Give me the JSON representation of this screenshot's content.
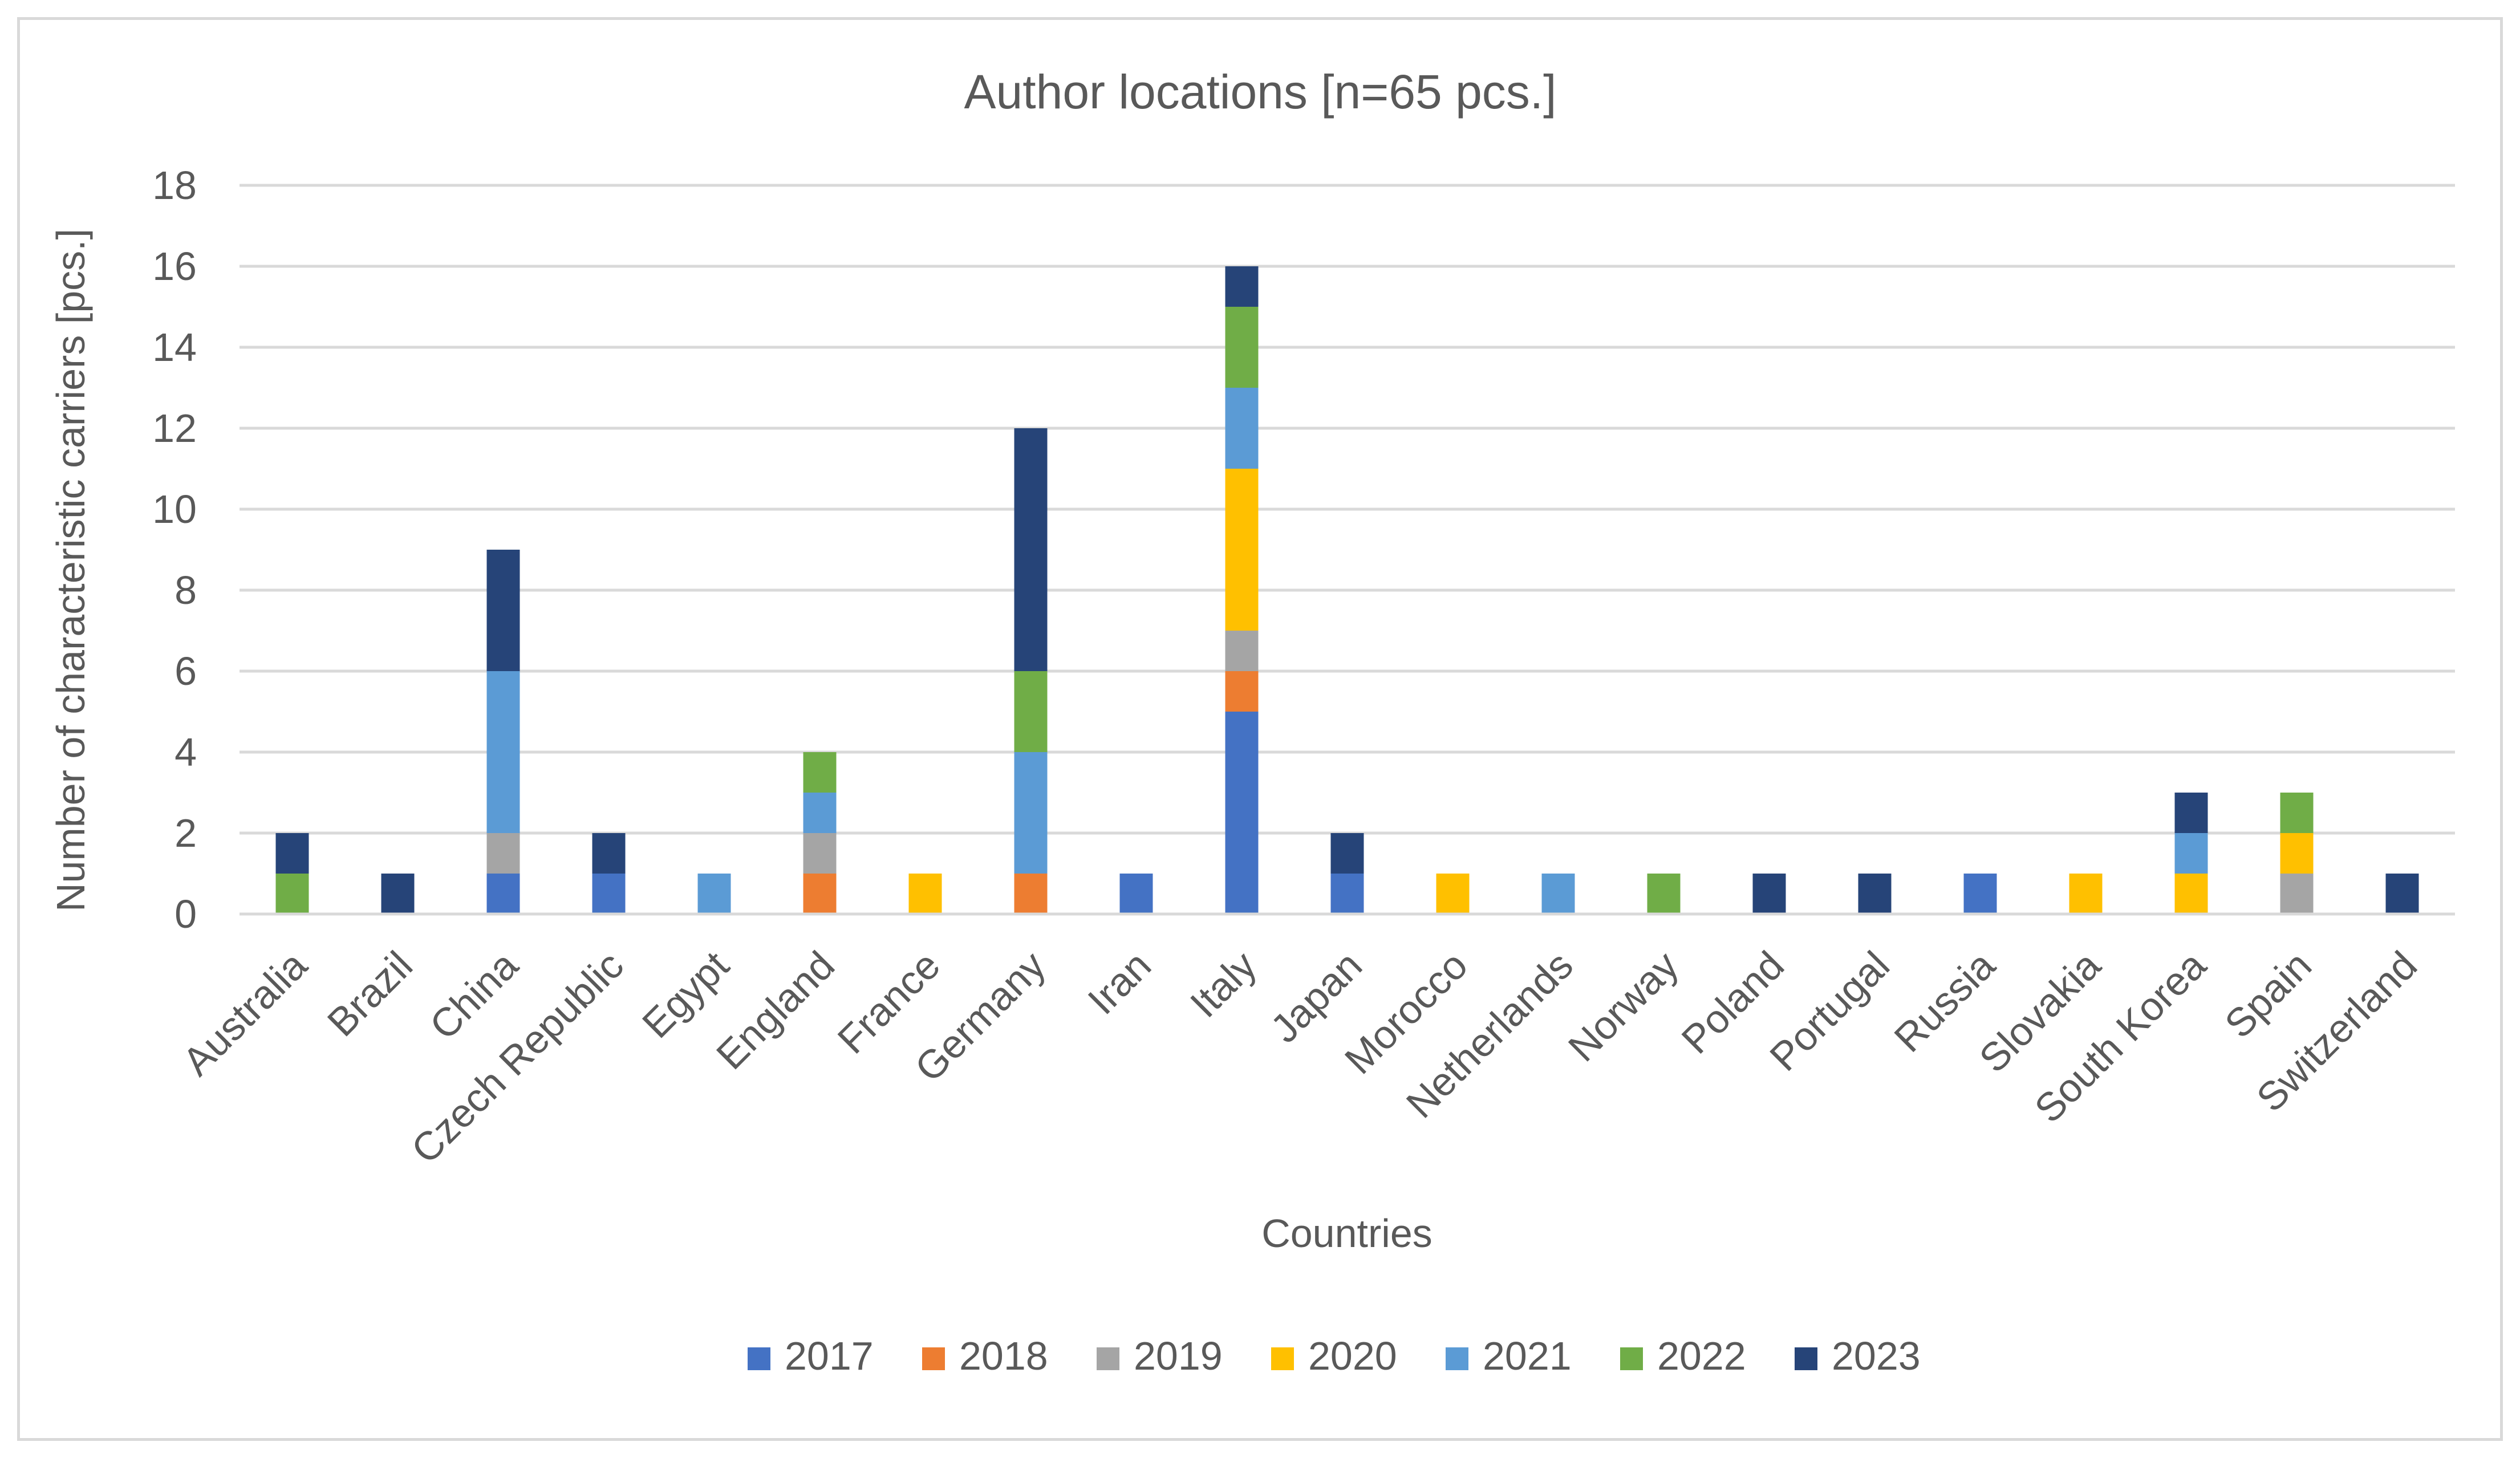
{
  "chart_data": {
    "type": "bar",
    "stacked": true,
    "title": "Author locations [n=65 pcs.]",
    "xlabel": "Countries",
    "ylabel": "Number of characteristic carriers [pcs.]",
    "ylim": [
      0,
      18
    ],
    "yticks": [
      0,
      2,
      4,
      6,
      8,
      10,
      12,
      14,
      16,
      18
    ],
    "grid": true,
    "legend_position": "bottom",
    "categories": [
      "Australia",
      "Brazil",
      "China",
      "Czech Republic",
      "Egypt",
      "England",
      "France",
      "Germany",
      "Iran",
      "Italy",
      "Japan",
      "Morocco",
      "Netherlands",
      "Norway",
      "Poland",
      "Portugal",
      "Russia",
      "Slovakia",
      "South Korea",
      "Spain",
      "Switzerland"
    ],
    "series": [
      {
        "name": "2017",
        "color": "#4472c4",
        "values": [
          0,
          0,
          1,
          1,
          0,
          0,
          0,
          0,
          1,
          5,
          1,
          0,
          0,
          0,
          0,
          0,
          1,
          0,
          0,
          0,
          0
        ]
      },
      {
        "name": "2018",
        "color": "#ed7d31",
        "values": [
          0,
          0,
          0,
          0,
          0,
          1,
          0,
          1,
          0,
          1,
          0,
          0,
          0,
          0,
          0,
          0,
          0,
          0,
          0,
          0,
          0
        ]
      },
      {
        "name": "2019",
        "color": "#a5a5a5",
        "values": [
          0,
          0,
          1,
          0,
          0,
          1,
          0,
          0,
          0,
          1,
          0,
          0,
          0,
          0,
          0,
          0,
          0,
          0,
          0,
          1,
          0
        ]
      },
      {
        "name": "2020",
        "color": "#ffc000",
        "values": [
          0,
          0,
          0,
          0,
          0,
          0,
          1,
          0,
          0,
          4,
          0,
          1,
          0,
          0,
          0,
          0,
          0,
          1,
          1,
          1,
          0
        ]
      },
      {
        "name": "2021",
        "color": "#5b9bd5",
        "values": [
          0,
          0,
          4,
          0,
          1,
          1,
          0,
          3,
          0,
          2,
          0,
          0,
          1,
          0,
          0,
          0,
          0,
          0,
          1,
          0,
          0
        ]
      },
      {
        "name": "2022",
        "color": "#70ad47",
        "values": [
          1,
          0,
          0,
          0,
          0,
          1,
          0,
          2,
          0,
          2,
          0,
          0,
          0,
          1,
          0,
          0,
          0,
          0,
          0,
          1,
          0
        ]
      },
      {
        "name": "2023",
        "color": "#264478",
        "values": [
          1,
          1,
          3,
          1,
          0,
          0,
          0,
          6,
          0,
          1,
          1,
          0,
          0,
          0,
          1,
          1,
          0,
          0,
          1,
          0,
          1
        ]
      }
    ]
  }
}
